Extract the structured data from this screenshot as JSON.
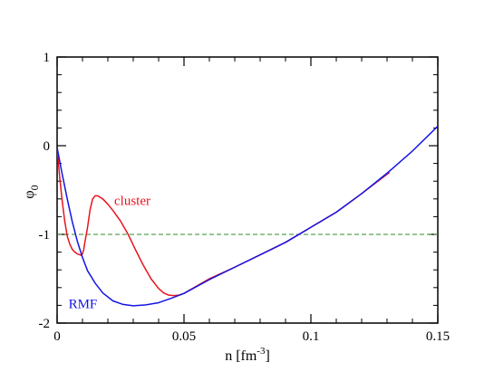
{
  "chart_data": {
    "type": "line",
    "xlabel": "n [fm",
    "xlabel_sup": "-3",
    "xlabel_end": "]",
    "ylabel": "φ",
    "ylabel_sub": "0",
    "xlim": [
      0,
      0.15
    ],
    "ylim": [
      -2,
      1
    ],
    "xticks": [
      {
        "value": 0,
        "label": "0"
      },
      {
        "value": 0.05,
        "label": "0.05"
      },
      {
        "value": 0.1,
        "label": "0.1"
      },
      {
        "value": 0.15,
        "label": "0.15"
      }
    ],
    "yticks": [
      {
        "value": -2,
        "label": "-2"
      },
      {
        "value": -1,
        "label": "-1"
      },
      {
        "value": 0,
        "label": "0"
      },
      {
        "value": 1,
        "label": "1"
      }
    ],
    "x_minor_step": 0.01,
    "y_minor_step": 0.2,
    "grid": false,
    "series": [
      {
        "name": "cluster",
        "color": "#e8141c",
        "label_at": [
          0.0225,
          -0.67
        ],
        "points": [
          [
            0,
            -0.02
          ],
          [
            0.001,
            -0.35
          ],
          [
            0.002,
            -0.62
          ],
          [
            0.003,
            -0.85
          ],
          [
            0.004,
            -1.02
          ],
          [
            0.005,
            -1.11
          ],
          [
            0.006,
            -1.17
          ],
          [
            0.007,
            -1.2
          ],
          [
            0.008,
            -1.22
          ],
          [
            0.009,
            -1.23
          ],
          [
            0.0095,
            -1.235
          ],
          [
            0.01,
            -1.22
          ],
          [
            0.0105,
            -1.17
          ],
          [
            0.011,
            -1.08
          ],
          [
            0.012,
            -0.92
          ],
          [
            0.013,
            -0.72
          ],
          [
            0.014,
            -0.6
          ],
          [
            0.015,
            -0.565
          ],
          [
            0.016,
            -0.565
          ],
          [
            0.018,
            -0.6
          ],
          [
            0.02,
            -0.66
          ],
          [
            0.022,
            -0.73
          ],
          [
            0.025,
            -0.85
          ],
          [
            0.028,
            -1.0
          ],
          [
            0.031,
            -1.18
          ],
          [
            0.034,
            -1.35
          ],
          [
            0.037,
            -1.5
          ],
          [
            0.04,
            -1.61
          ],
          [
            0.042,
            -1.66
          ],
          [
            0.044,
            -1.685
          ],
          [
            0.046,
            -1.69
          ],
          [
            0.048,
            -1.685
          ],
          [
            0.05,
            -1.665
          ],
          [
            0.06,
            -1.5
          ],
          [
            0.07,
            -1.37
          ],
          [
            0.08,
            -1.23
          ],
          [
            0.09,
            -1.09
          ],
          [
            0.1,
            -0.92
          ],
          [
            0.11,
            -0.75
          ],
          [
            0.12,
            -0.54
          ],
          [
            0.131,
            -0.3
          ]
        ]
      },
      {
        "name": "RMF",
        "color": "#1414e6",
        "label_at": [
          0.0045,
          -1.83
        ],
        "points": [
          [
            0,
            -0.02
          ],
          [
            0.002,
            -0.32
          ],
          [
            0.004,
            -0.6
          ],
          [
            0.006,
            -0.86
          ],
          [
            0.008,
            -1.08
          ],
          [
            0.01,
            -1.26
          ],
          [
            0.012,
            -1.41
          ],
          [
            0.015,
            -1.55
          ],
          [
            0.018,
            -1.66
          ],
          [
            0.022,
            -1.75
          ],
          [
            0.026,
            -1.79
          ],
          [
            0.03,
            -1.805
          ],
          [
            0.035,
            -1.795
          ],
          [
            0.04,
            -1.77
          ],
          [
            0.045,
            -1.72
          ],
          [
            0.05,
            -1.665
          ],
          [
            0.06,
            -1.51
          ],
          [
            0.07,
            -1.37
          ],
          [
            0.08,
            -1.23
          ],
          [
            0.09,
            -1.09
          ],
          [
            0.1,
            -0.92
          ],
          [
            0.11,
            -0.75
          ],
          [
            0.12,
            -0.54
          ],
          [
            0.13,
            -0.31
          ],
          [
            0.14,
            -0.06
          ],
          [
            0.15,
            0.22
          ]
        ]
      }
    ],
    "reference_line": {
      "y": -1,
      "color": "#2e8b2e",
      "style": "dashed"
    }
  }
}
